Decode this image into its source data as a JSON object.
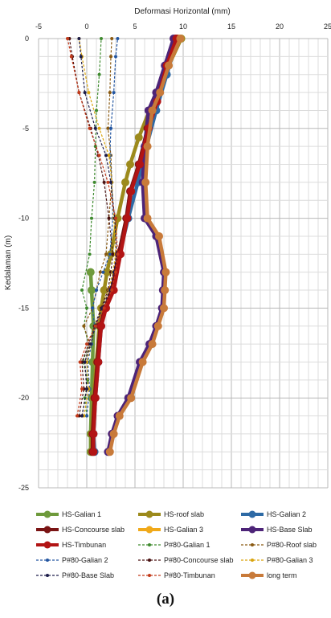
{
  "caption": "(a)",
  "chart_data": {
    "type": "line",
    "title": "",
    "xlabel": "Deformasi Horizontal (mm)",
    "ylabel": "Kedalaman (m)",
    "xlim": [
      -5,
      25
    ],
    "ylim": [
      0,
      25
    ],
    "xticks": [
      -5,
      0,
      5,
      10,
      15,
      20,
      25
    ],
    "yticks": [
      0,
      -5,
      -10,
      -15,
      -20,
      -25
    ],
    "grid": true,
    "legend_position": "bottom",
    "series": [
      {
        "name": "HS-Galian 1",
        "color": "#6e9a3c",
        "style": "solid",
        "x": [
          0.4,
          0.4,
          0.5,
          0.6,
          0.7,
          0.5,
          0.4
        ],
        "depth": [
          -23,
          -22,
          -20,
          -18,
          -16,
          -14,
          -13
        ]
      },
      {
        "name": "HS-roof slab",
        "color": "#9c8a1c",
        "style": "solid",
        "x": [
          0.5,
          0.5,
          0.7,
          1.0,
          1.3,
          1.5,
          1.8,
          2.1,
          2.5,
          3.2,
          4.0,
          4.5,
          5.4,
          6.5,
          7.5,
          8.5,
          9.8
        ],
        "depth": [
          -23,
          -22,
          -20,
          -18,
          -16,
          -15,
          -14,
          -13,
          -12,
          -10,
          -8,
          -7,
          -5.5,
          -4,
          -3,
          -1.5,
          0
        ]
      },
      {
        "name": "HS-Galian 2",
        "color": "#2e6aa5",
        "style": "solid",
        "x": [
          0.8,
          0.7,
          0.9,
          1.2,
          1.5,
          1.9,
          2.7,
          3.4,
          4.3,
          5.3,
          6.2,
          7.2,
          8.3,
          9.4
        ],
        "depth": [
          -23,
          -22,
          -20,
          -18,
          -16,
          -15,
          -14,
          -12,
          -10,
          -8,
          -6,
          -4,
          -2,
          0
        ]
      },
      {
        "name": "HS-Concourse slab",
        "color": "#7a1414",
        "style": "solid",
        "x": [
          0.6,
          0.6,
          0.8,
          1.1,
          1.4,
          1.9,
          2.6,
          3.3,
          4.1,
          4.5,
          5.4,
          6.3,
          7.2,
          8.2,
          9.2
        ],
        "depth": [
          -23,
          -22,
          -20,
          -18,
          -16,
          -15,
          -14,
          -12,
          -10,
          -8.5,
          -7,
          -5,
          -3.5,
          -1.5,
          0
        ]
      },
      {
        "name": "HS-Galian 3",
        "color": "#f0a91a",
        "style": "solid",
        "x": [
          2.3,
          2.7,
          3.3,
          4.5,
          5.7,
          6.7,
          7.3,
          7.9,
          8.0,
          8.1,
          7.4,
          6.2,
          6.0,
          6.2,
          6.7,
          7.5,
          8.4,
          9.5
        ],
        "depth": [
          -23,
          -22,
          -21,
          -20,
          -18,
          -17,
          -16,
          -15,
          -14,
          -13,
          -11,
          -10,
          -8,
          -6,
          -4,
          -3,
          -1.5,
          0
        ]
      },
      {
        "name": "HS-Base Slab",
        "color": "#4d2478",
        "style": "solid",
        "x": [
          2.2,
          2.6,
          3.2,
          4.3,
          5.5,
          6.5,
          7.2,
          7.8,
          7.9,
          8.0,
          7.2,
          6.0,
          5.8,
          6.0,
          6.4,
          7.2,
          8.1,
          9.0
        ],
        "depth": [
          -23,
          -22,
          -21,
          -20,
          -18,
          -17,
          -16,
          -15,
          -14,
          -13,
          -11,
          -10,
          -8,
          -6,
          -4,
          -3,
          -1.5,
          0
        ]
      },
      {
        "name": "HS-Timbunan",
        "color": "#b21414",
        "style": "solid",
        "x": [
          0.7,
          0.7,
          0.9,
          1.2,
          1.5,
          2.0,
          2.8,
          3.5,
          4.2,
          4.6,
          5.5,
          6.4,
          7.3,
          8.3,
          9.3
        ],
        "depth": [
          -23,
          -22,
          -20,
          -18,
          -16,
          -15,
          -14,
          -12,
          -10,
          -8.5,
          -7,
          -5,
          -3.5,
          -1.5,
          0
        ]
      },
      {
        "name": "P#80-Galian 1",
        "color": "#3e8a2e",
        "style": "dashed",
        "x": [
          0.0,
          -0.2,
          0.1,
          -0.4,
          0.2,
          -0.3,
          0.0,
          -0.5,
          0.3,
          0.5,
          0.8,
          0.9,
          1.0,
          1.3,
          1.5
        ],
        "depth": [
          -21,
          -20,
          -19,
          -18,
          -17,
          -16,
          -15,
          -14,
          -12,
          -10,
          -8,
          -6,
          -4,
          -2,
          0
        ]
      },
      {
        "name": "P#80-Roof slab",
        "color": "#8a5a12",
        "style": "dashed",
        "x": [
          -0.5,
          0.0,
          -0.2,
          0.3,
          -0.3,
          0.6,
          1.0,
          1.4,
          2.0,
          2.3,
          2.6,
          2.5,
          2.2,
          2.4,
          2.5,
          2.6
        ],
        "depth": [
          -21,
          -19.5,
          -18,
          -17,
          -16,
          -15,
          -14,
          -13,
          -12,
          -10,
          -8,
          -6.5,
          -5,
          -3,
          -1,
          0
        ]
      },
      {
        "name": "P#80-Galian 2",
        "color": "#2255a0",
        "style": "dashed",
        "x": [
          0.0,
          0.3,
          0.1,
          0.5,
          0.8,
          0.6,
          1.0,
          1.7,
          2.4,
          2.7,
          2.6,
          2.4,
          2.5,
          2.8,
          3.0,
          3.2
        ],
        "depth": [
          -21,
          -19.5,
          -18,
          -17,
          -16,
          -15,
          -14,
          -13,
          -12,
          -10,
          -8,
          -6.5,
          -5,
          -3,
          -1,
          0
        ]
      },
      {
        "name": "P#80-Concourse slab",
        "color": "#4a1212",
        "style": "dashed",
        "x": [
          -0.8,
          -0.3,
          -0.5,
          0.2,
          0.8,
          1.5,
          2.2,
          2.5,
          2.7,
          2.3,
          1.8,
          1.2,
          0.4,
          -0.8,
          -1.5,
          -1.8
        ],
        "depth": [
          -21,
          -19.5,
          -18,
          -17,
          -16,
          -15,
          -14,
          -13,
          -12,
          -10,
          -8,
          -6.5,
          -5,
          -3,
          -1,
          0
        ]
      },
      {
        "name": "P#80-Galian 3",
        "color": "#d9a40e",
        "style": "dashed",
        "x": [
          -0.3,
          0.2,
          0.0,
          0.4,
          0.9,
          1.6,
          2.3,
          2.7,
          3.0,
          2.8,
          2.6,
          2.3,
          1.3,
          0.2,
          -0.5,
          -0.8
        ],
        "depth": [
          -21,
          -19.5,
          -18,
          -17,
          -16,
          -15,
          -14,
          -13,
          -12,
          -10,
          -8,
          -6.5,
          -5,
          -3,
          -1,
          0
        ]
      },
      {
        "name": "P#80-Base Slab",
        "color": "#1c1c4a",
        "style": "dashed",
        "x": [
          -0.5,
          0.0,
          -0.2,
          0.4,
          0.9,
          1.6,
          2.4,
          2.8,
          3.1,
          2.9,
          2.5,
          2.0,
          0.9,
          -0.2,
          -0.6,
          -0.8
        ],
        "depth": [
          -21,
          -19.5,
          -18,
          -17,
          -16,
          -15,
          -14,
          -13,
          -12,
          -10,
          -8,
          -6.5,
          -5,
          -3,
          -1,
          0
        ]
      },
      {
        "name": "P#80-Timbunan",
        "color": "#c23a1a",
        "style": "dashed",
        "x": [
          -1.0,
          -0.5,
          -0.7,
          0.0,
          0.9,
          1.8,
          2.6,
          3.0,
          3.2,
          3.0,
          2.2,
          1.3,
          0.3,
          -0.8,
          -1.6,
          -2.0
        ],
        "depth": [
          -21,
          -19.5,
          -18,
          -17,
          -16,
          -15,
          -14,
          -13,
          -12,
          -10,
          -8,
          -6.5,
          -5,
          -3,
          -1,
          0
        ]
      },
      {
        "name": "long term",
        "color": "#c87a3a",
        "style": "solid",
        "x": [
          2.4,
          2.8,
          3.4,
          4.6,
          5.8,
          6.8,
          7.4,
          8.0,
          8.1,
          8.2,
          7.5,
          6.3,
          6.1,
          6.3,
          6.8,
          7.6,
          8.5,
          9.7
        ],
        "depth": [
          -23,
          -22,
          -21,
          -20,
          -18,
          -17,
          -16,
          -15,
          -14,
          -13,
          -11,
          -10,
          -8,
          -6,
          -4,
          -3,
          -1.5,
          0
        ]
      }
    ]
  }
}
